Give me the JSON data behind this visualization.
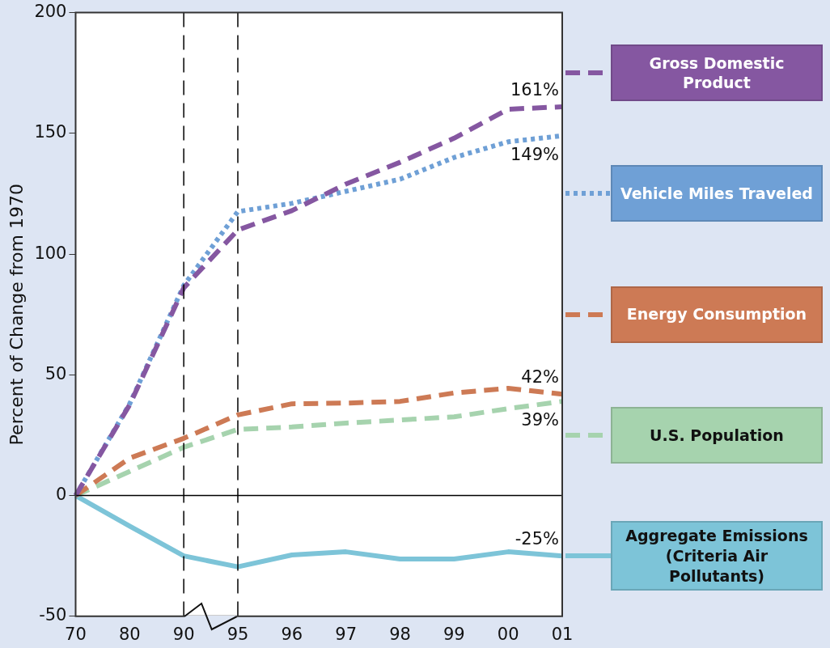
{
  "chart_data": {
    "type": "line",
    "ylabel": "Percent of Change from 1970",
    "categories": [
      "70",
      "80",
      "90",
      "95",
      "96",
      "97",
      "98",
      "99",
      "00",
      "01"
    ],
    "series": [
      {
        "name": "Gross Domestic Product",
        "color": "#8557a1",
        "line_style": "dashed",
        "values": [
          0,
          37.6,
          86,
          110,
          118,
          129,
          138,
          148,
          160,
          161
        ]
      },
      {
        "name": "Vehicle Miles Traveled",
        "color": "#6fa0d6",
        "line_style": "dotted",
        "values": [
          0,
          38,
          87,
          117.6,
          121,
          126,
          131,
          140,
          146.5,
          149
        ]
      },
      {
        "name": "Energy Consumption",
        "color": "#cd7a55",
        "line_style": "dashed",
        "values": [
          0,
          15.5,
          23.7,
          33.4,
          38,
          38.3,
          39,
          42.5,
          44.4,
          42
        ]
      },
      {
        "name": "U.S. Population",
        "color": "#a6d3ae",
        "line_style": "dashed",
        "values": [
          0,
          10,
          20,
          27.4,
          28.4,
          30,
          31.3,
          32.6,
          36,
          39
        ]
      },
      {
        "name": "Aggregate Emissions\n(Criteria Air Pollutants)",
        "color": "#7dc4d8",
        "line_style": "solid",
        "values": [
          0,
          -12.7,
          -25,
          -29.5,
          -24.6,
          -23.3,
          -26.3,
          -26.3,
          -23.3,
          -25
        ]
      }
    ],
    "ylim": [
      -50,
      200
    ],
    "yticks": [
      -50,
      0,
      50,
      100,
      150,
      200
    ],
    "ref_lines": [
      {
        "axis": "y",
        "value": 0,
        "color": "#000000",
        "line_style": "solid"
      },
      {
        "axis": "x",
        "value": "90",
        "color": "#000000",
        "line_style": "dashed"
      },
      {
        "axis": "x",
        "value": "95",
        "color": "#000000",
        "line_style": "dashed"
      }
    ],
    "annotations": [
      {
        "text": "161%",
        "x": "01",
        "y": 161
      },
      {
        "text": "149%",
        "x": "01",
        "y": 149
      },
      {
        "text": "42%",
        "x": "01",
        "y": 42
      },
      {
        "text": "39%",
        "x": "01",
        "y": 39
      },
      {
        "text": "-25%",
        "x": "01",
        "y": -25
      }
    ],
    "legend": "right",
    "grid": false,
    "marker": "none"
  }
}
